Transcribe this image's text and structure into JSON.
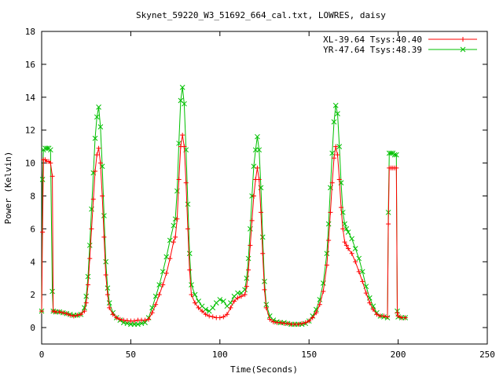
{
  "chart_data": {
    "type": "line",
    "title": "Skynet_59220_W3_51692_664_cal.txt, LOWRES, daisy",
    "xlabel": "Time(Seconds)",
    "ylabel": "Power (Kelvin)",
    "xlim": [
      0,
      250
    ],
    "ylim": [
      -1,
      18
    ],
    "xticks": [
      0,
      50,
      100,
      150,
      200,
      250
    ],
    "yticks": [
      0,
      2,
      4,
      6,
      8,
      10,
      12,
      14,
      16,
      18
    ],
    "grid": false,
    "legend_position": "top-right",
    "series": [
      {
        "name": "XL-39.64 Tsys:40.40",
        "color": "#ff0000",
        "marker": "plus",
        "points": [
          [
            0,
            1.0
          ],
          [
            0.5,
            5.8
          ],
          [
            1,
            10.2
          ],
          [
            2,
            10.2
          ],
          [
            3,
            10.1
          ],
          [
            4,
            10.1
          ],
          [
            5,
            10.0
          ],
          [
            6,
            9.2
          ],
          [
            6.5,
            1.0
          ],
          [
            8,
            0.95
          ],
          [
            10,
            0.95
          ],
          [
            12,
            0.9
          ],
          [
            14,
            0.85
          ],
          [
            16,
            0.75
          ],
          [
            18,
            0.7
          ],
          [
            20,
            0.75
          ],
          [
            22,
            0.8
          ],
          [
            24,
            1.0
          ],
          [
            25,
            1.5
          ],
          [
            26,
            2.6
          ],
          [
            27,
            4.2
          ],
          [
            28,
            6.0
          ],
          [
            29,
            7.8
          ],
          [
            30,
            9.5
          ],
          [
            31,
            10.5
          ],
          [
            32,
            10.9
          ],
          [
            33,
            10.0
          ],
          [
            34,
            8.0
          ],
          [
            35,
            5.5
          ],
          [
            36,
            3.2
          ],
          [
            37,
            2.0
          ],
          [
            38,
            1.2
          ],
          [
            40,
            0.8
          ],
          [
            42,
            0.6
          ],
          [
            44,
            0.5
          ],
          [
            46,
            0.45
          ],
          [
            48,
            0.42
          ],
          [
            50,
            0.4
          ],
          [
            52,
            0.4
          ],
          [
            54,
            0.45
          ],
          [
            56,
            0.45
          ],
          [
            58,
            0.45
          ],
          [
            60,
            0.5
          ],
          [
            62,
            0.9
          ],
          [
            64,
            1.4
          ],
          [
            66,
            2.0
          ],
          [
            68,
            2.6
          ],
          [
            70,
            3.3
          ],
          [
            72,
            4.2
          ],
          [
            74,
            5.2
          ],
          [
            75,
            5.5
          ],
          [
            76,
            6.6
          ],
          [
            77,
            9.0
          ],
          [
            78,
            11.0
          ],
          [
            79,
            11.7
          ],
          [
            80,
            11.0
          ],
          [
            81,
            8.8
          ],
          [
            82,
            6.0
          ],
          [
            83,
            3.5
          ],
          [
            84,
            2.0
          ],
          [
            86,
            1.5
          ],
          [
            88,
            1.2
          ],
          [
            90,
            1.0
          ],
          [
            92,
            0.8
          ],
          [
            94,
            0.7
          ],
          [
            96,
            0.65
          ],
          [
            98,
            0.6
          ],
          [
            100,
            0.6
          ],
          [
            102,
            0.65
          ],
          [
            104,
            0.8
          ],
          [
            106,
            1.2
          ],
          [
            108,
            1.6
          ],
          [
            110,
            1.8
          ],
          [
            112,
            1.9
          ],
          [
            114,
            2.0
          ],
          [
            115,
            2.5
          ],
          [
            116,
            3.5
          ],
          [
            117,
            5.0
          ],
          [
            118,
            6.5
          ],
          [
            119,
            8.0
          ],
          [
            120,
            9.0
          ],
          [
            121,
            9.7
          ],
          [
            122,
            9.0
          ],
          [
            123,
            7.0
          ],
          [
            124,
            4.5
          ],
          [
            125,
            2.3
          ],
          [
            126,
            1.2
          ],
          [
            128,
            0.5
          ],
          [
            130,
            0.35
          ],
          [
            132,
            0.3
          ],
          [
            134,
            0.3
          ],
          [
            136,
            0.25
          ],
          [
            138,
            0.25
          ],
          [
            140,
            0.2
          ],
          [
            142,
            0.2
          ],
          [
            144,
            0.2
          ],
          [
            146,
            0.25
          ],
          [
            148,
            0.3
          ],
          [
            150,
            0.4
          ],
          [
            152,
            0.6
          ],
          [
            154,
            0.9
          ],
          [
            156,
            1.4
          ],
          [
            158,
            2.2
          ],
          [
            160,
            3.8
          ],
          [
            161,
            5.3
          ],
          [
            162,
            7.0
          ],
          [
            163,
            8.8
          ],
          [
            164,
            10.3
          ],
          [
            165,
            11.0
          ],
          [
            166,
            10.5
          ],
          [
            167,
            9.0
          ],
          [
            168,
            7.3
          ],
          [
            169,
            6.0
          ],
          [
            170,
            5.2
          ],
          [
            171,
            5.0
          ],
          [
            172,
            4.8
          ],
          [
            174,
            4.5
          ],
          [
            176,
            4.0
          ],
          [
            178,
            3.4
          ],
          [
            180,
            2.8
          ],
          [
            182,
            2.1
          ],
          [
            184,
            1.5
          ],
          [
            186,
            1.1
          ],
          [
            188,
            0.8
          ],
          [
            190,
            0.7
          ],
          [
            192,
            0.7
          ],
          [
            194,
            0.65
          ],
          [
            194.5,
            6.3
          ],
          [
            195,
            9.7
          ],
          [
            196,
            9.7
          ],
          [
            197,
            9.7
          ],
          [
            198,
            9.7
          ],
          [
            199,
            9.7
          ],
          [
            199.5,
            0.9
          ],
          [
            200,
            0.7
          ],
          [
            202,
            0.6
          ],
          [
            204,
            0.6
          ]
        ]
      },
      {
        "name": "YR-47.64 Tsys:48.39",
        "color": "#00c000",
        "marker": "cross",
        "points": [
          [
            0,
            1.0
          ],
          [
            0.5,
            9.0
          ],
          [
            1,
            10.8
          ],
          [
            2,
            10.9
          ],
          [
            3,
            10.9
          ],
          [
            4,
            10.9
          ],
          [
            5,
            10.8
          ],
          [
            6,
            2.2
          ],
          [
            6.5,
            1.0
          ],
          [
            8,
            0.95
          ],
          [
            10,
            0.95
          ],
          [
            12,
            0.9
          ],
          [
            14,
            0.85
          ],
          [
            16,
            0.8
          ],
          [
            18,
            0.75
          ],
          [
            20,
            0.75
          ],
          [
            22,
            0.8
          ],
          [
            24,
            1.2
          ],
          [
            25,
            1.9
          ],
          [
            26,
            3.1
          ],
          [
            27,
            5.0
          ],
          [
            28,
            7.2
          ],
          [
            29,
            9.4
          ],
          [
            30,
            11.5
          ],
          [
            31,
            12.8
          ],
          [
            32,
            13.4
          ],
          [
            33,
            12.2
          ],
          [
            34,
            9.8
          ],
          [
            35,
            6.8
          ],
          [
            36,
            4.0
          ],
          [
            37,
            2.4
          ],
          [
            38,
            1.5
          ],
          [
            40,
            0.9
          ],
          [
            42,
            0.6
          ],
          [
            44,
            0.45
          ],
          [
            46,
            0.3
          ],
          [
            48,
            0.25
          ],
          [
            50,
            0.2
          ],
          [
            52,
            0.2
          ],
          [
            54,
            0.2
          ],
          [
            56,
            0.25
          ],
          [
            58,
            0.3
          ],
          [
            60,
            0.6
          ],
          [
            62,
            1.2
          ],
          [
            64,
            1.9
          ],
          [
            66,
            2.6
          ],
          [
            68,
            3.4
          ],
          [
            70,
            4.3
          ],
          [
            72,
            5.3
          ],
          [
            74,
            6.2
          ],
          [
            75,
            6.6
          ],
          [
            76,
            8.3
          ],
          [
            77,
            11.2
          ],
          [
            78,
            13.8
          ],
          [
            79,
            14.6
          ],
          [
            80,
            13.6
          ],
          [
            81,
            10.8
          ],
          [
            82,
            7.5
          ],
          [
            83,
            4.5
          ],
          [
            84,
            2.6
          ],
          [
            86,
            2.0
          ],
          [
            88,
            1.6
          ],
          [
            90,
            1.3
          ],
          [
            92,
            1.1
          ],
          [
            94,
            1.0
          ],
          [
            96,
            1.2
          ],
          [
            98,
            1.5
          ],
          [
            100,
            1.7
          ],
          [
            102,
            1.6
          ],
          [
            104,
            1.3
          ],
          [
            106,
            1.5
          ],
          [
            108,
            1.9
          ],
          [
            110,
            2.1
          ],
          [
            112,
            2.1
          ],
          [
            114,
            2.3
          ],
          [
            115,
            3.0
          ],
          [
            116,
            4.2
          ],
          [
            117,
            6.0
          ],
          [
            118,
            8.0
          ],
          [
            119,
            9.8
          ],
          [
            120,
            10.8
          ],
          [
            121,
            11.6
          ],
          [
            122,
            10.8
          ],
          [
            123,
            8.5
          ],
          [
            124,
            5.5
          ],
          [
            125,
            2.8
          ],
          [
            126,
            1.4
          ],
          [
            128,
            0.7
          ],
          [
            130,
            0.45
          ],
          [
            132,
            0.35
          ],
          [
            134,
            0.3
          ],
          [
            136,
            0.3
          ],
          [
            138,
            0.25
          ],
          [
            140,
            0.2
          ],
          [
            142,
            0.2
          ],
          [
            144,
            0.2
          ],
          [
            146,
            0.2
          ],
          [
            148,
            0.25
          ],
          [
            150,
            0.4
          ],
          [
            152,
            0.7
          ],
          [
            154,
            1.1
          ],
          [
            156,
            1.7
          ],
          [
            158,
            2.7
          ],
          [
            160,
            4.5
          ],
          [
            161,
            6.3
          ],
          [
            162,
            8.5
          ],
          [
            163,
            10.6
          ],
          [
            164,
            12.5
          ],
          [
            165,
            13.5
          ],
          [
            166,
            13.0
          ],
          [
            167,
            11.0
          ],
          [
            168,
            8.8
          ],
          [
            169,
            7.0
          ],
          [
            170,
            6.3
          ],
          [
            171,
            6.0
          ],
          [
            172,
            5.8
          ],
          [
            174,
            5.4
          ],
          [
            176,
            4.8
          ],
          [
            178,
            4.2
          ],
          [
            180,
            3.4
          ],
          [
            182,
            2.5
          ],
          [
            184,
            1.8
          ],
          [
            186,
            1.3
          ],
          [
            188,
            0.9
          ],
          [
            190,
            0.7
          ],
          [
            192,
            0.65
          ],
          [
            194,
            0.6
          ],
          [
            194.5,
            7.0
          ],
          [
            195,
            10.6
          ],
          [
            196,
            10.6
          ],
          [
            197,
            10.6
          ],
          [
            198,
            10.5
          ],
          [
            199,
            10.5
          ],
          [
            199.5,
            1.0
          ],
          [
            200,
            0.65
          ],
          [
            202,
            0.6
          ],
          [
            204,
            0.6
          ]
        ]
      }
    ]
  }
}
